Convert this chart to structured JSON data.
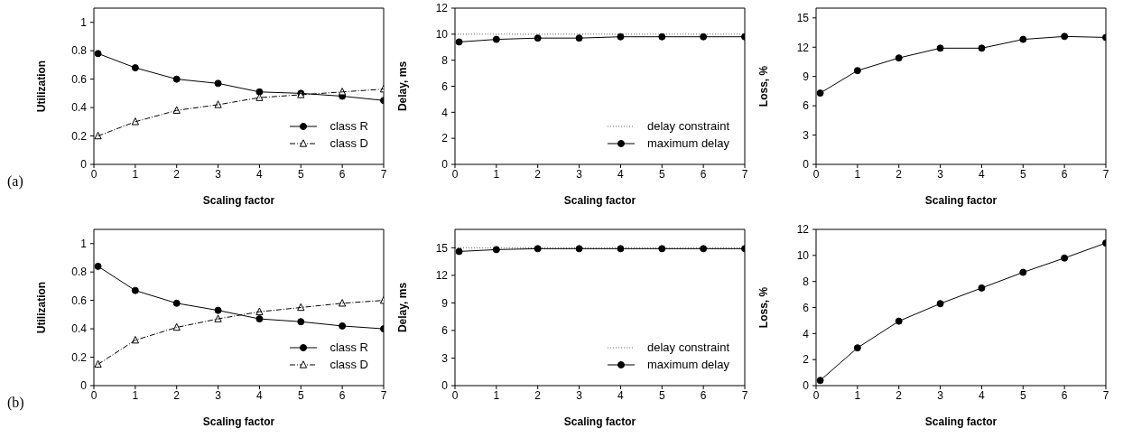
{
  "chart_data": [
    {
      "type": "line",
      "xlabel": "Scaling factor",
      "ylabel": "Utilization",
      "x": [
        0.1,
        1,
        2,
        3,
        4,
        5,
        6,
        7
      ],
      "xlim": [
        0,
        7
      ],
      "xticks": [
        0,
        1,
        2,
        3,
        4,
        5,
        6,
        7
      ],
      "ylim": [
        0,
        1.1
      ],
      "yticks": [
        0,
        0.2,
        0.4,
        0.6,
        0.8,
        1
      ],
      "grid": false,
      "legend": "bottom right",
      "annotations": [
        "(a)"
      ],
      "series": [
        {
          "name": "class R",
          "color": "#000000",
          "marker": "circle",
          "line_style": "solid",
          "values": [
            0.78,
            0.68,
            0.6,
            0.57,
            0.51,
            0.5,
            0.48,
            0.45
          ]
        },
        {
          "name": "class D",
          "color": "#000000",
          "marker": "triangle",
          "line_style": "dashed",
          "values": [
            0.2,
            0.3,
            0.38,
            0.42,
            0.47,
            0.49,
            0.51,
            0.53
          ]
        }
      ]
    },
    {
      "type": "line",
      "xlabel": "Scaling factor",
      "ylabel": "Delay, ms",
      "x": [
        0.1,
        1,
        2,
        3,
        4,
        5,
        6,
        7
      ],
      "xlim": [
        0,
        7
      ],
      "xticks": [
        0,
        1,
        2,
        3,
        4,
        5,
        6,
        7
      ],
      "ylim": [
        0,
        12
      ],
      "yticks": [
        0,
        2,
        4,
        6,
        8,
        10,
        12
      ],
      "grid": false,
      "legend": "bottom right",
      "ref_lines": [
        {
          "axis": "y",
          "value": 10,
          "label": "delay constraint",
          "color": "#666666",
          "line_style": "dotted"
        }
      ],
      "series": [
        {
          "name": "maximum delay",
          "color": "#000000",
          "marker": "circle",
          "line_style": "solid",
          "values": [
            9.4,
            9.6,
            9.7,
            9.7,
            9.8,
            9.8,
            9.8,
            9.8
          ]
        }
      ]
    },
    {
      "type": "line",
      "xlabel": "Scaling factor",
      "ylabel": "Loss, %",
      "x": [
        0.1,
        1,
        2,
        3,
        4,
        5,
        6,
        7
      ],
      "xlim": [
        0,
        7
      ],
      "xticks": [
        0,
        1,
        2,
        3,
        4,
        5,
        6,
        7
      ],
      "ylim": [
        0,
        16
      ],
      "yticks": [
        0,
        3,
        6,
        9,
        12,
        15
      ],
      "grid": false,
      "series": [
        {
          "color": "#000000",
          "marker": "circle",
          "line_style": "solid",
          "values": [
            7.3,
            9.6,
            10.9,
            11.9,
            11.9,
            12.8,
            13.1,
            13.0
          ]
        }
      ]
    },
    {
      "type": "line",
      "xlabel": "Scaling factor",
      "ylabel": "Utilization",
      "x": [
        0.1,
        1,
        2,
        3,
        4,
        5,
        6,
        7
      ],
      "xlim": [
        0,
        7
      ],
      "xticks": [
        0,
        1,
        2,
        3,
        4,
        5,
        6,
        7
      ],
      "ylim": [
        0,
        1.1
      ],
      "yticks": [
        0,
        0.2,
        0.4,
        0.6,
        0.8,
        1
      ],
      "grid": false,
      "legend": "bottom right",
      "annotations": [
        "(b)"
      ],
      "series": [
        {
          "name": "class R",
          "color": "#000000",
          "marker": "circle",
          "line_style": "solid",
          "values": [
            0.84,
            0.67,
            0.58,
            0.53,
            0.47,
            0.45,
            0.42,
            0.4
          ]
        },
        {
          "name": "class D",
          "color": "#000000",
          "marker": "triangle",
          "line_style": "dashed",
          "values": [
            0.15,
            0.32,
            0.41,
            0.47,
            0.52,
            0.55,
            0.58,
            0.6
          ]
        }
      ]
    },
    {
      "type": "line",
      "xlabel": "Scaling factor",
      "ylabel": "Delay, ms",
      "x": [
        0.1,
        1,
        2,
        3,
        4,
        5,
        6,
        7
      ],
      "xlim": [
        0,
        7
      ],
      "xticks": [
        0,
        1,
        2,
        3,
        4,
        5,
        6,
        7
      ],
      "ylim": [
        0,
        17
      ],
      "yticks": [
        0,
        3,
        6,
        9,
        12,
        15
      ],
      "grid": false,
      "legend": "bottom right",
      "ref_lines": [
        {
          "axis": "y",
          "value": 15,
          "label": "delay constraint",
          "color": "#666666",
          "line_style": "dotted"
        }
      ],
      "series": [
        {
          "name": "maximum delay",
          "color": "#000000",
          "marker": "circle",
          "line_style": "solid",
          "values": [
            14.6,
            14.8,
            14.9,
            14.9,
            14.9,
            14.9,
            14.9,
            14.9
          ]
        }
      ]
    },
    {
      "type": "line",
      "xlabel": "Scaling factor",
      "ylabel": "Loss, %",
      "x": [
        0.1,
        1,
        2,
        3,
        4,
        5,
        6,
        7
      ],
      "xlim": [
        0,
        7
      ],
      "xticks": [
        0,
        1,
        2,
        3,
        4,
        5,
        6,
        7
      ],
      "ylim": [
        0,
        12
      ],
      "yticks": [
        0,
        2,
        4,
        6,
        8,
        10,
        12
      ],
      "grid": false,
      "series": [
        {
          "color": "#000000",
          "marker": "circle",
          "line_style": "solid",
          "values": [
            0.4,
            2.9,
            4.95,
            6.3,
            7.5,
            8.7,
            9.8,
            10.95
          ]
        }
      ]
    }
  ]
}
